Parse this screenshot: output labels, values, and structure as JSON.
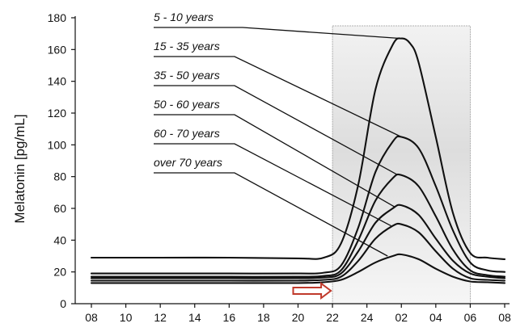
{
  "chart_data": {
    "type": "line",
    "title": "",
    "xlabel": "",
    "ylabel": "Melatonin [pg/mL]",
    "x_tick_labels": [
      "08",
      "10",
      "12",
      "14",
      "16",
      "18",
      "20",
      "22",
      "24",
      "02",
      "04",
      "06",
      "08"
    ],
    "y_ticks": [
      0,
      20,
      40,
      60,
      80,
      100,
      120,
      140,
      160,
      180
    ],
    "ylim": [
      0,
      180
    ],
    "xlim_hours": [
      8,
      32
    ],
    "grid": false,
    "shaded_band_hours": [
      22,
      30
    ],
    "arrow_marker_hours": [
      20,
      22
    ],
    "series": [
      {
        "name": "5 - 10 years",
        "x": [
          8,
          12,
          16,
          20,
          21.5,
          22.5,
          23.5,
          24.5,
          25.5,
          26,
          26.5,
          27,
          28,
          29,
          30,
          31,
          32
        ],
        "values": [
          29,
          29,
          29,
          28.5,
          29,
          38,
          75,
          135,
          163,
          167,
          164,
          152,
          105,
          57,
          32,
          29,
          28
        ]
      },
      {
        "name": "15 - 35 years",
        "x": [
          8,
          12,
          16,
          20,
          21.5,
          22.5,
          23.5,
          24.5,
          25.5,
          26,
          27,
          28,
          29,
          30,
          31,
          32
        ],
        "values": [
          19,
          19,
          19,
          19,
          19.5,
          24,
          48,
          83,
          102,
          105,
          98,
          74,
          46,
          26,
          21,
          20
        ]
      },
      {
        "name": "35 - 50 years",
        "x": [
          8,
          12,
          16,
          20,
          21.5,
          22.5,
          23.5,
          24.5,
          25.5,
          26,
          27,
          28,
          29,
          30,
          31,
          32
        ],
        "values": [
          17,
          17,
          17,
          17,
          17.5,
          21,
          40,
          65,
          79,
          81,
          74,
          55,
          34,
          21,
          18,
          17
        ]
      },
      {
        "name": "50 - 60 years",
        "x": [
          8,
          12,
          16,
          20,
          21.5,
          22.5,
          23.5,
          24.5,
          25.5,
          26,
          27,
          28,
          29,
          30,
          31,
          32
        ],
        "values": [
          16,
          16,
          16,
          16,
          16.5,
          19,
          33,
          51,
          60,
          62,
          56,
          41,
          27,
          19,
          17,
          16
        ]
      },
      {
        "name": "60 - 70 years",
        "x": [
          8,
          12,
          16,
          20,
          21.5,
          22.5,
          23.5,
          24.5,
          25.5,
          26,
          27,
          28,
          29,
          30,
          31,
          32
        ],
        "values": [
          14.5,
          14.5,
          14.5,
          14.5,
          15,
          17,
          27,
          41,
          49,
          50,
          45,
          33,
          22,
          16,
          15,
          14.5
        ]
      },
      {
        "name": "over 70 years",
        "x": [
          8,
          12,
          16,
          20,
          21.5,
          22.5,
          23.5,
          24.5,
          25.5,
          26,
          27,
          28,
          29,
          30,
          31,
          32
        ],
        "values": [
          13,
          13,
          13,
          13,
          13.5,
          15,
          20,
          26,
          30,
          31,
          28,
          22,
          17,
          14,
          13.5,
          13
        ]
      }
    ],
    "leader_targets": [
      {
        "x": 26,
        "y": 167
      },
      {
        "x": 26,
        "y": 105
      },
      {
        "x": 25.8,
        "y": 81
      },
      {
        "x": 25.6,
        "y": 61
      },
      {
        "x": 25.4,
        "y": 49
      },
      {
        "x": 25.2,
        "y": 30
      }
    ]
  }
}
